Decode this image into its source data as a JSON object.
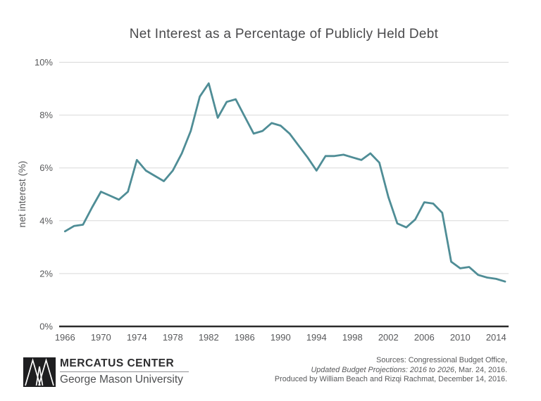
{
  "chart_data": {
    "type": "line",
    "title": "Net Interest as a Percentage of Publicly Held Debt",
    "xlabel": "",
    "ylabel": "net interest (%)",
    "x_ticks": [
      "1966",
      "1970",
      "1974",
      "1978",
      "1982",
      "1986",
      "1990",
      "1994",
      "1998",
      "2002",
      "2006",
      "2010",
      "2014"
    ],
    "y_ticks": [
      "0%",
      "2%",
      "4%",
      "6%",
      "8%",
      "10%"
    ],
    "ylim": [
      0,
      10
    ],
    "xlim": [
      1966,
      2015
    ],
    "grid": true,
    "legend": "none",
    "series": [
      {
        "name": "net interest as a percentage of publicly held debt",
        "color": "#4f8d96",
        "x": [
          1966,
          1967,
          1968,
          1969,
          1970,
          1971,
          1972,
          1973,
          1974,
          1975,
          1976,
          1977,
          1978,
          1979,
          1980,
          1981,
          1982,
          1983,
          1984,
          1985,
          1986,
          1987,
          1988,
          1989,
          1990,
          1991,
          1992,
          1993,
          1994,
          1995,
          1996,
          1997,
          1998,
          1999,
          2000,
          2001,
          2002,
          2003,
          2004,
          2005,
          2006,
          2007,
          2008,
          2009,
          2010,
          2011,
          2012,
          2013,
          2014,
          2015
        ],
        "values": [
          3.6,
          3.8,
          3.85,
          4.5,
          5.1,
          4.95,
          4.8,
          5.1,
          6.3,
          5.9,
          5.7,
          5.5,
          5.9,
          6.55,
          7.4,
          8.7,
          9.2,
          7.9,
          8.5,
          8.6,
          7.95,
          7.3,
          7.4,
          7.7,
          7.6,
          7.3,
          6.85,
          6.4,
          5.9,
          6.45,
          6.45,
          6.5,
          6.4,
          6.3,
          6.55,
          6.2,
          4.9,
          3.9,
          3.75,
          4.05,
          4.7,
          4.65,
          4.3,
          2.45,
          2.2,
          2.25,
          1.95,
          1.85,
          1.8,
          1.7
        ]
      }
    ]
  },
  "colors": {
    "line": "#4f8d96",
    "grid": "#d9d9d9",
    "axis": "#2b2b2b",
    "tick_text": "#58595b",
    "title_text": "#4a4a4c",
    "credit_text": "#58595b",
    "logo_block": "#1e1e20"
  },
  "footer": {
    "logo": {
      "mark": "mercatus-monogram",
      "primary": "MERCATUS CENTER",
      "secondary": "George Mason University"
    },
    "credits": {
      "line1": "Sources: Congressional Budget Office,",
      "line2_italic": "Updated Budget Projections: 2016 to 2026",
      "line2_rest": ", Mar. 24, 2016.",
      "line3": "Produced by William Beach and Rizqi Rachmat, December 14, 2016."
    }
  }
}
